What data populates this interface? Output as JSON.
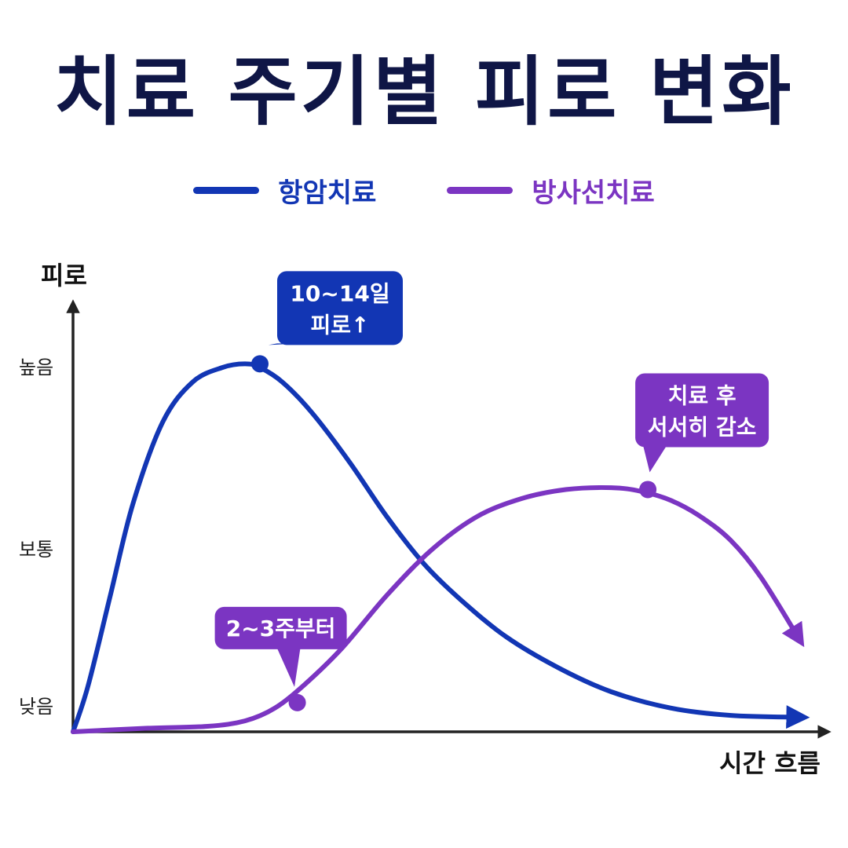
{
  "chart_data": {
    "type": "line",
    "title": "치료 주기별 피로 변화",
    "xlabel": "시간 흐름",
    "ylabel": "피로",
    "y_tick_labels": [
      "낮음",
      "보통",
      "높음"
    ],
    "y_tick_values": [
      0,
      1,
      2
    ],
    "ylim": [
      0,
      2.35
    ],
    "xlim": [
      0,
      1
    ],
    "grid": false,
    "legend_position": "top-center",
    "series": [
      {
        "name": "항암치료",
        "color": "#1236b4",
        "x": [
          0,
          0.02,
          0.05,
          0.08,
          0.12,
          0.16,
          0.2,
          0.23,
          0.25,
          0.28,
          0.32,
          0.37,
          0.42,
          0.47,
          0.52,
          0.58,
          0.65,
          0.72,
          0.8,
          0.88,
          0.97
        ],
        "y": [
          0,
          0.25,
          0.75,
          1.25,
          1.7,
          1.92,
          2.0,
          2.02,
          2.0,
          1.92,
          1.75,
          1.48,
          1.18,
          0.92,
          0.72,
          0.52,
          0.35,
          0.22,
          0.13,
          0.09,
          0.08
        ]
      },
      {
        "name": "방사선치료",
        "color": "#7b35c2",
        "x": [
          0,
          0.1,
          0.18,
          0.23,
          0.27,
          0.31,
          0.36,
          0.42,
          0.48,
          0.54,
          0.6,
          0.66,
          0.72,
          0.76,
          0.8,
          0.84,
          0.88,
          0.92,
          0.97
        ],
        "y": [
          0,
          0.02,
          0.03,
          0.06,
          0.13,
          0.26,
          0.46,
          0.75,
          1.0,
          1.18,
          1.28,
          1.33,
          1.34,
          1.32,
          1.27,
          1.18,
          1.05,
          0.85,
          0.52
        ]
      }
    ],
    "annotations": [
      {
        "series": 0,
        "x": 0.25,
        "y": 2.02,
        "lines": [
          "10~14일",
          "피로↑"
        ]
      },
      {
        "series": 1,
        "x": 0.3,
        "y": 0.16,
        "lines": [
          "2~3주부터"
        ]
      },
      {
        "series": 1,
        "x": 0.769,
        "y": 1.33,
        "lines": [
          "치료 후",
          "서서히 감소"
        ]
      }
    ]
  }
}
